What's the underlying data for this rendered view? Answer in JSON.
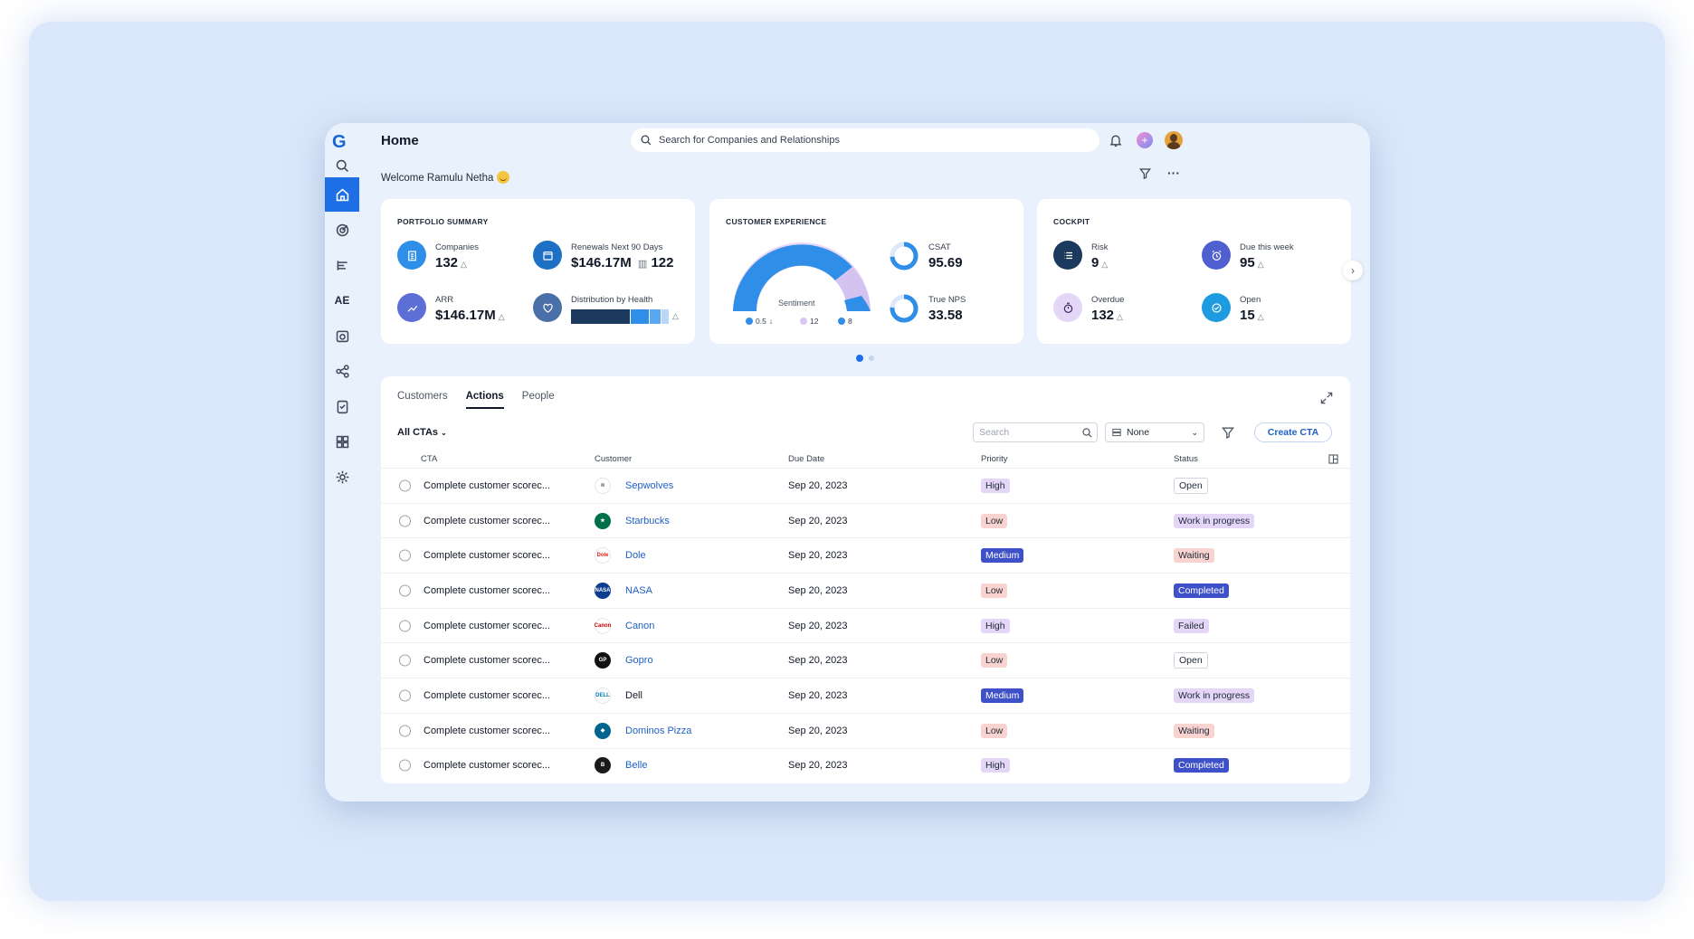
{
  "header": {
    "title": "Home",
    "search_placeholder": "Search for Companies and Relationships",
    "welcome": "Welcome Ramulu Netha"
  },
  "sidebar": {
    "logo": "G",
    "items": [
      {
        "name": "search-icon"
      },
      {
        "name": "home-icon",
        "active": true
      },
      {
        "name": "target-icon"
      },
      {
        "name": "timeline-icon"
      },
      {
        "name": "ae-label",
        "text": "AE"
      },
      {
        "name": "calendar-icon"
      },
      {
        "name": "relationships-icon"
      },
      {
        "name": "clipboard-check-icon"
      },
      {
        "name": "dashboard-icon"
      },
      {
        "name": "settings-icon"
      }
    ]
  },
  "portfolio": {
    "title": "PORTFOLIO SUMMARY",
    "companies_label": "Companies",
    "companies_value": "132",
    "renewals_label": "Renewals Next 90 Days",
    "renewals_value": "$146.17M",
    "renewals_count": "122",
    "arr_label": "ARR",
    "arr_value": "$146.17M",
    "distribution_label": "Distribution by Health",
    "distribution": [
      0.6,
      0.2,
      0.12,
      0.08
    ]
  },
  "experience": {
    "title": "CUSTOMER EXPERIENCE",
    "sentiment_label": "Sentiment",
    "sentiment_legend": [
      "0.5",
      "12",
      "8"
    ],
    "csat_label": "CSAT",
    "csat_value": "95.69",
    "nps_label": "True NPS",
    "nps_value": "33.58"
  },
  "cockpit": {
    "title": "COCKPIT",
    "risk_label": "Risk",
    "risk_value": "9",
    "due_label": "Due this week",
    "due_value": "95",
    "overdue_label": "Overdue",
    "overdue_value": "132",
    "open_label": "Open",
    "open_value": "15"
  },
  "table_panel": {
    "tabs": [
      "Customers",
      "Actions",
      "People"
    ],
    "active_tab": "Actions",
    "filter_label": "All CTAs",
    "search_placeholder": "Search",
    "group_select": "None",
    "create_label": "Create CTA",
    "columns": [
      "CTA",
      "Customer",
      "Due Date",
      "Priority",
      "Status"
    ],
    "rows": [
      {
        "cta": "Complete customer scorec...",
        "customer": "Sepwolves",
        "due": "Sep 20, 2023",
        "priority": "High",
        "status": "Open"
      },
      {
        "cta": "Complete customer scorec...",
        "customer": "Starbucks",
        "due": "Sep 20, 2023",
        "priority": "Low",
        "status": "Work in progress"
      },
      {
        "cta": "Complete customer scorec...",
        "customer": "Dole",
        "due": "Sep 20, 2023",
        "priority": "Medium",
        "status": "Waiting"
      },
      {
        "cta": "Complete customer scorec...",
        "customer": "NASA",
        "due": "Sep 20, 2023",
        "priority": "Low",
        "status": "Completed"
      },
      {
        "cta": "Complete customer scorec...",
        "customer": "Canon",
        "due": "Sep 20, 2023",
        "priority": "High",
        "status": "Failed"
      },
      {
        "cta": "Complete customer scorec...",
        "customer": "Gopro",
        "due": "Sep 20, 2023",
        "priority": "Low",
        "status": "Open"
      },
      {
        "cta": "Complete customer scorec...",
        "customer": "Dell",
        "due": "Sep 20, 2023",
        "priority": "Medium",
        "status": "Work in progress"
      },
      {
        "cta": "Complete customer scorec...",
        "customer": "Dominos Pizza",
        "due": "Sep 20, 2023",
        "priority": "Low",
        "status": "Waiting"
      },
      {
        "cta": "Complete customer scorec...",
        "customer": "Belle",
        "due": "Sep 20, 2023",
        "priority": "High",
        "status": "Completed"
      }
    ]
  },
  "colors": {
    "accent": "#1e6fe6",
    "priority": {
      "High": "#e4d6f7",
      "Low": "#f9d3cf",
      "Medium": "#3f51c8"
    },
    "status": {
      "Open": "#ffffff",
      "Work in progress": "#e4d6f7",
      "Waiting": "#f9d3cf",
      "Completed": "#3f51c8",
      "Failed": "#e4d6f7"
    }
  }
}
